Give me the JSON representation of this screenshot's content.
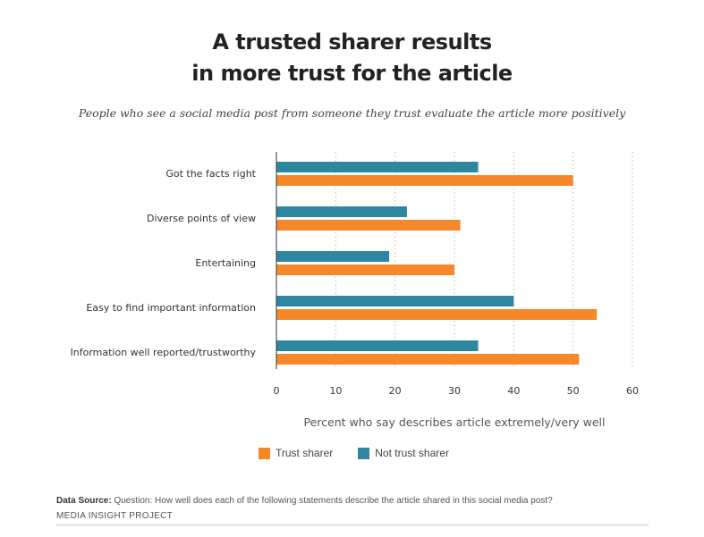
{
  "title_lines": [
    "A trusted sharer results",
    "in more trust for the article"
  ],
  "subtitle": "People who see a social media post from someone they trust evaluate the article more positively",
  "chart_data": {
    "type": "bar",
    "orientation": "horizontal",
    "categories": [
      "Got the facts right",
      "Diverse points of view",
      "Entertaining",
      "Easy to find important information",
      "Information well reported/trustworthy"
    ],
    "series": [
      {
        "name": "Not trust sharer",
        "color": "#2e87a0",
        "values": [
          34,
          22,
          19,
          40,
          34
        ]
      },
      {
        "name": "Trust sharer",
        "color": "#f5882a",
        "values": [
          50,
          31,
          30,
          54,
          51
        ]
      }
    ],
    "xlabel": "Percent who say describes article extremely/very well",
    "xlim": [
      0,
      60
    ],
    "xticks": [
      0,
      10,
      20,
      30,
      40,
      50,
      60
    ],
    "grid": "vertical dotted",
    "legend_position": "bottom"
  },
  "legend": [
    {
      "label": "Trust sharer",
      "color": "#f5882a"
    },
    {
      "label": "Not trust sharer",
      "color": "#2e87a0"
    }
  ],
  "source_label": "Data Source:",
  "source_text": " Question: How well does each of the following statements describe the article shared in this social media post?",
  "org": "MEDIA INSIGHT PROJECT"
}
